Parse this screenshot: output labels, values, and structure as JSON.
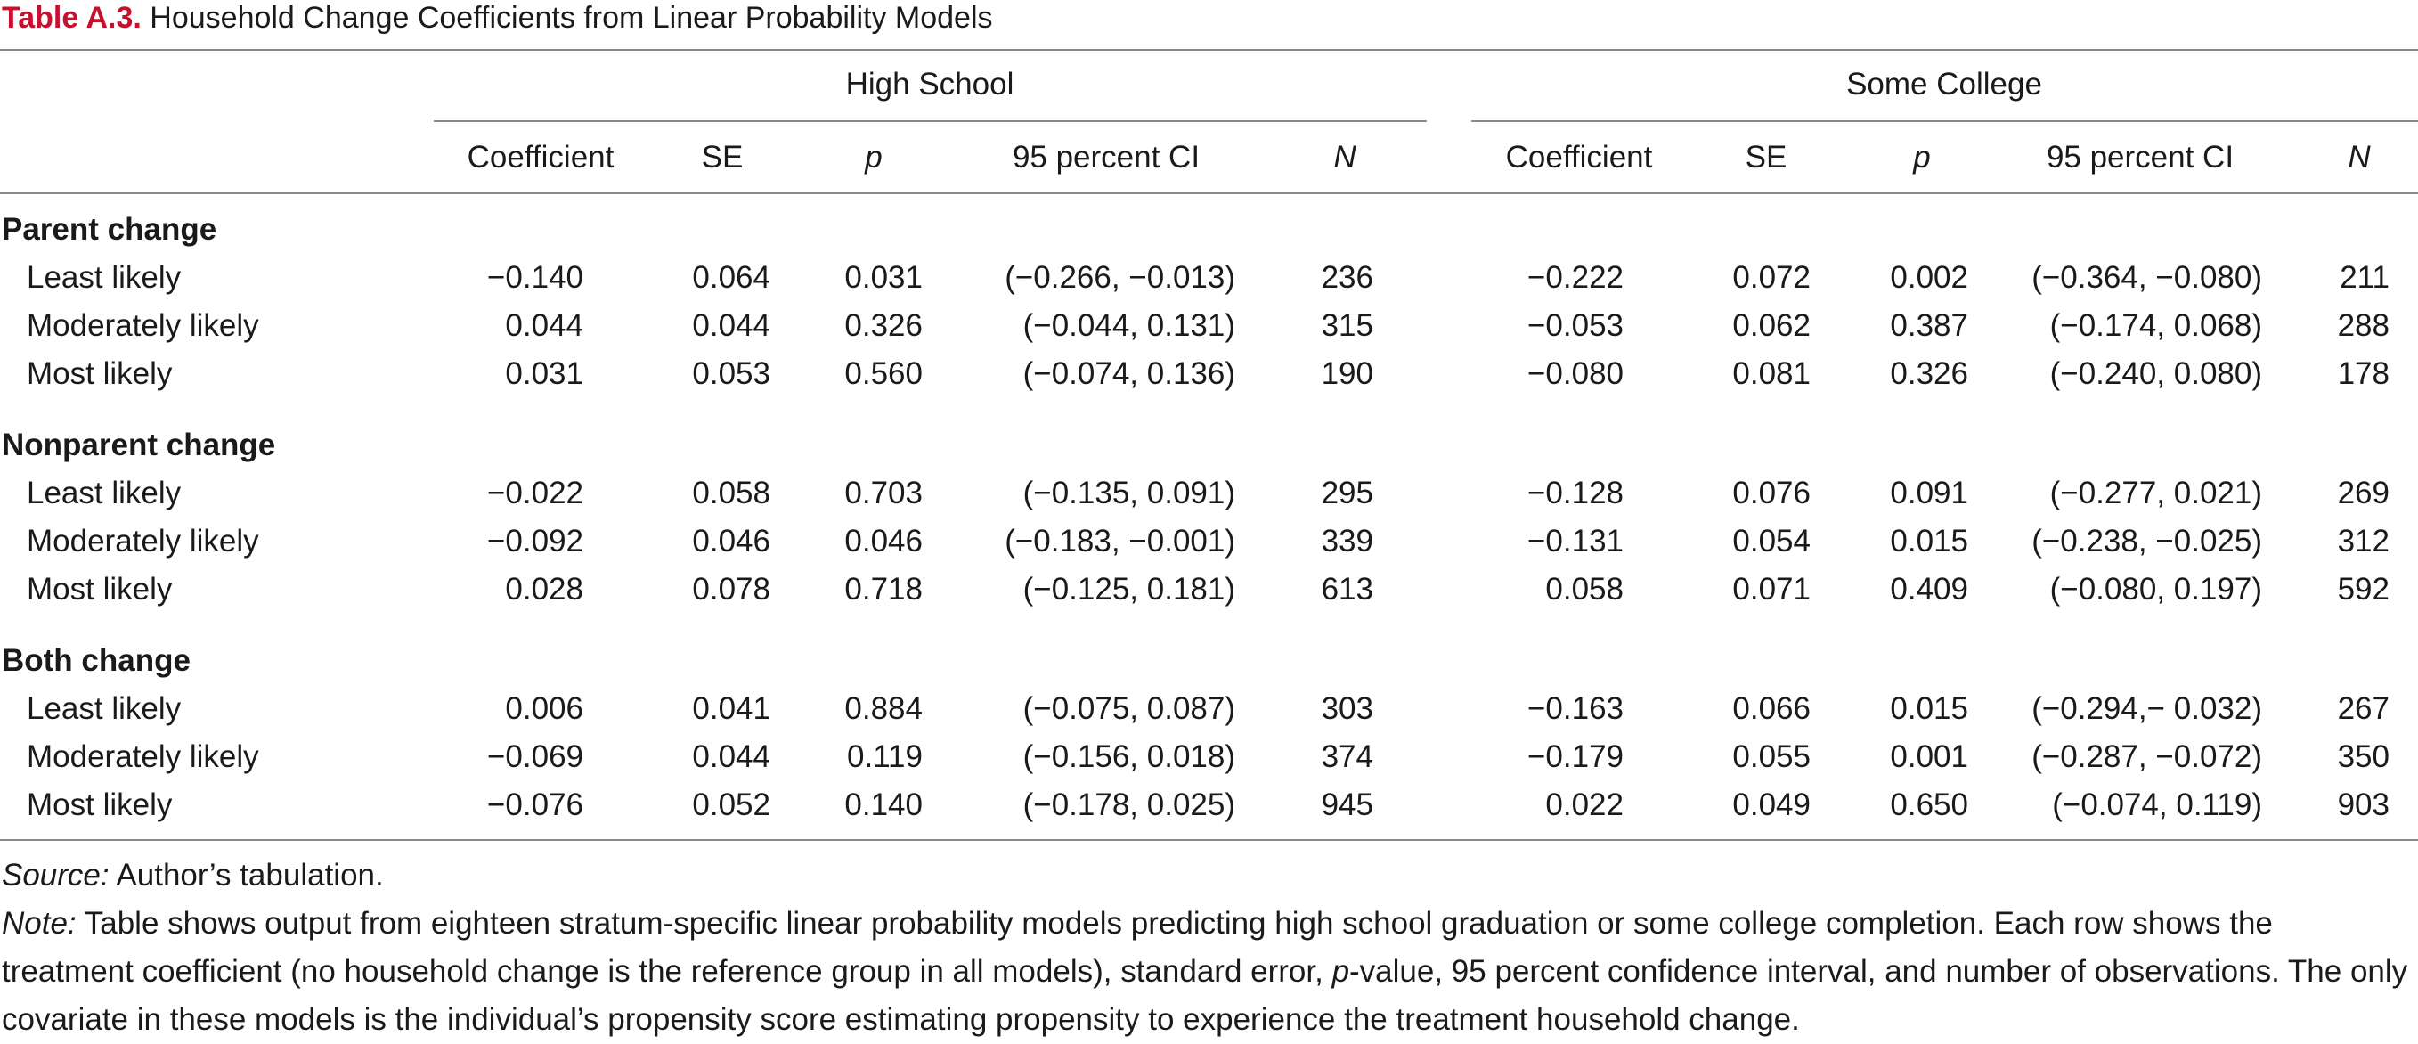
{
  "title": {
    "label": "Table A.3.",
    "text": "Household Change Coefficients from Linear Probability Models"
  },
  "groups": [
    {
      "name": "High School"
    },
    {
      "name": "Some College"
    }
  ],
  "columns": [
    "Coefficient",
    "SE",
    "p",
    "95 percent CI",
    "N"
  ],
  "sections": [
    {
      "name": "Parent change",
      "rows": [
        {
          "label": "Least likely",
          "hs": {
            "coef": "−0.140",
            "se": "0.064",
            "p": "0.031",
            "ci": "(−0.266, −0.013)",
            "n": "236"
          },
          "sc": {
            "coef": "−0.222",
            "se": "0.072",
            "p": "0.002",
            "ci": "(−0.364, −0.080)",
            "n": "211"
          }
        },
        {
          "label": "Moderately likely",
          "hs": {
            "coef": "0.044",
            "se": "0.044",
            "p": "0.326",
            "ci": "(−0.044, 0.131)",
            "n": "315"
          },
          "sc": {
            "coef": "−0.053",
            "se": "0.062",
            "p": "0.387",
            "ci": "(−0.174, 0.068)",
            "n": "288"
          }
        },
        {
          "label": "Most likely",
          "hs": {
            "coef": "0.031",
            "se": "0.053",
            "p": "0.560",
            "ci": "(−0.074, 0.136)",
            "n": "190"
          },
          "sc": {
            "coef": "−0.080",
            "se": "0.081",
            "p": "0.326",
            "ci": "(−0.240, 0.080)",
            "n": "178"
          }
        }
      ]
    },
    {
      "name": "Nonparent change",
      "rows": [
        {
          "label": "Least likely",
          "hs": {
            "coef": "−0.022",
            "se": "0.058",
            "p": "0.703",
            "ci": "(−0.135, 0.091)",
            "n": "295"
          },
          "sc": {
            "coef": "−0.128",
            "se": "0.076",
            "p": "0.091",
            "ci": "(−0.277, 0.021)",
            "n": "269"
          }
        },
        {
          "label": "Moderately likely",
          "hs": {
            "coef": "−0.092",
            "se": "0.046",
            "p": "0.046",
            "ci": "(−0.183, −0.001)",
            "n": "339"
          },
          "sc": {
            "coef": "−0.131",
            "se": "0.054",
            "p": "0.015",
            "ci": "(−0.238, −0.025)",
            "n": "312"
          }
        },
        {
          "label": "Most likely",
          "hs": {
            "coef": "0.028",
            "se": "0.078",
            "p": "0.718",
            "ci": "(−0.125, 0.181)",
            "n": "613"
          },
          "sc": {
            "coef": "0.058",
            "se": "0.071",
            "p": "0.409",
            "ci": "(−0.080, 0.197)",
            "n": "592"
          }
        }
      ]
    },
    {
      "name": "Both change",
      "rows": [
        {
          "label": "Least likely",
          "hs": {
            "coef": "0.006",
            "se": "0.041",
            "p": "0.884",
            "ci": "(−0.075, 0.087)",
            "n": "303"
          },
          "sc": {
            "coef": "−0.163",
            "se": "0.066",
            "p": "0.015",
            "ci": "(−0.294,− 0.032)",
            "n": "267"
          }
        },
        {
          "label": "Moderately likely",
          "hs": {
            "coef": "−0.069",
            "se": "0.044",
            "p": "0.119",
            "ci": "(−0.156, 0.018)",
            "n": "374"
          },
          "sc": {
            "coef": "−0.179",
            "se": "0.055",
            "p": "0.001",
            "ci": "(−0.287, −0.072)",
            "n": "350"
          }
        },
        {
          "label": "Most likely",
          "hs": {
            "coef": "−0.076",
            "se": "0.052",
            "p": "0.140",
            "ci": "(−0.178, 0.025)",
            "n": "945"
          },
          "sc": {
            "coef": "0.022",
            "se": "0.049",
            "p": "0.650",
            "ci": "(−0.074, 0.119)",
            "n": "903"
          }
        }
      ]
    }
  ],
  "source": {
    "lead": "Source:",
    "text": "Author’s tabulation."
  },
  "note": {
    "lead": "Note:",
    "text_a": "Table shows output from eighteen stratum-specific linear probability models predicting high school graduation or some college completion. Each row shows the treatment coefficient (no household change is the reference group in all models), standard error,",
    "p_italic": "p",
    "text_b": "-value, 95 percent confidence interval, and number of observations. The only covariate in these models is the individual’s propensity score estimating propensity to experience the treatment household change."
  }
}
